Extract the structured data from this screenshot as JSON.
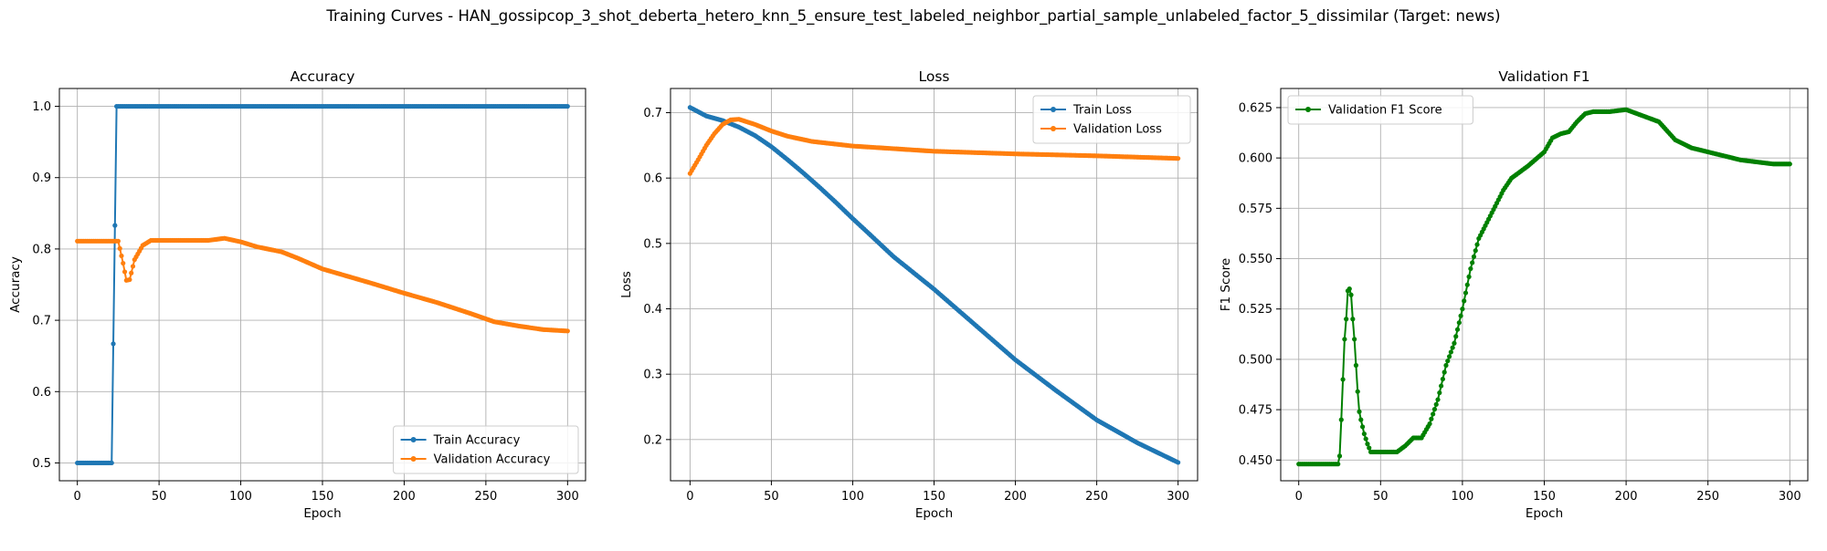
{
  "figure": {
    "title": "Training Curves - HAN_gossipcop_3_shot_deberta_hetero_knn_5_ensure_test_labeled_neighbor_partial_sample_unlabeled_factor_5_dissimilar (Target: news)"
  },
  "colors": {
    "blue": "#1f77b4",
    "orange": "#ff7f0e",
    "green": "#008000",
    "grid": "#b0b0b0"
  },
  "chart_data": [
    {
      "type": "line",
      "title": "Accuracy",
      "xlabel": "Epoch",
      "ylabel": "Accuracy",
      "xlim": [
        -11,
        311
      ],
      "ylim": [
        0.475,
        1.025
      ],
      "xticks": [
        0,
        50,
        100,
        150,
        200,
        250,
        300
      ],
      "yticks": [
        0.5,
        0.6,
        0.7,
        0.8,
        0.9,
        1.0
      ],
      "ytick_labels": [
        "0.5",
        "0.6",
        "0.7",
        "0.8",
        "0.9",
        "1.0"
      ],
      "grid": true,
      "legend_position": "lower-right",
      "series": [
        {
          "name": "Train Accuracy",
          "color": "#1f77b4",
          "keypoints": [
            [
              0,
              0.5
            ],
            [
              21,
              0.5
            ],
            [
              22,
              0.667
            ],
            [
              23,
              0.833
            ],
            [
              24,
              1.0
            ],
            [
              300,
              1.0
            ]
          ]
        },
        {
          "name": "Validation Accuracy",
          "color": "#ff7f0e",
          "keypoints": [
            [
              0,
              0.811
            ],
            [
              25,
              0.811
            ],
            [
              28,
              0.78
            ],
            [
              30,
              0.756
            ],
            [
              32,
              0.757
            ],
            [
              35,
              0.785
            ],
            [
              40,
              0.805
            ],
            [
              45,
              0.812
            ],
            [
              60,
              0.812
            ],
            [
              80,
              0.812
            ],
            [
              90,
              0.815
            ],
            [
              100,
              0.81
            ],
            [
              110,
              0.803
            ],
            [
              125,
              0.796
            ],
            [
              135,
              0.787
            ],
            [
              150,
              0.772
            ],
            [
              165,
              0.762
            ],
            [
              180,
              0.752
            ],
            [
              200,
              0.738
            ],
            [
              220,
              0.725
            ],
            [
              240,
              0.71
            ],
            [
              255,
              0.698
            ],
            [
              270,
              0.692
            ],
            [
              285,
              0.687
            ],
            [
              300,
              0.685
            ]
          ]
        }
      ]
    },
    {
      "type": "line",
      "title": "Loss",
      "xlabel": "Epoch",
      "ylabel": "Loss",
      "xlim": [
        -12,
        312
      ],
      "ylim": [
        0.137,
        0.737
      ],
      "xticks": [
        0,
        50,
        100,
        150,
        200,
        250,
        300
      ],
      "yticks": [
        0.2,
        0.3,
        0.4,
        0.5,
        0.6,
        0.7
      ],
      "ytick_labels": [
        "0.2",
        "0.3",
        "0.4",
        "0.5",
        "0.6",
        "0.7"
      ],
      "grid": true,
      "legend_position": "upper-right",
      "series": [
        {
          "name": "Train Loss",
          "color": "#1f77b4",
          "keypoints": [
            [
              0,
              0.708
            ],
            [
              10,
              0.695
            ],
            [
              20,
              0.688
            ],
            [
              30,
              0.678
            ],
            [
              40,
              0.665
            ],
            [
              50,
              0.648
            ],
            [
              60,
              0.628
            ],
            [
              70,
              0.607
            ],
            [
              80,
              0.585
            ],
            [
              90,
              0.562
            ],
            [
              100,
              0.538
            ],
            [
              110,
              0.515
            ],
            [
              125,
              0.48
            ],
            [
              150,
              0.43
            ],
            [
              175,
              0.376
            ],
            [
              200,
              0.322
            ],
            [
              225,
              0.275
            ],
            [
              250,
              0.23
            ],
            [
              275,
              0.195
            ],
            [
              300,
              0.165
            ]
          ]
        },
        {
          "name": "Validation Loss",
          "color": "#ff7f0e",
          "keypoints": [
            [
              0,
              0.607
            ],
            [
              5,
              0.628
            ],
            [
              10,
              0.65
            ],
            [
              15,
              0.668
            ],
            [
              20,
              0.682
            ],
            [
              25,
              0.689
            ],
            [
              30,
              0.69
            ],
            [
              40,
              0.682
            ],
            [
              50,
              0.672
            ],
            [
              60,
              0.664
            ],
            [
              75,
              0.656
            ],
            [
              100,
              0.649
            ],
            [
              125,
              0.645
            ],
            [
              150,
              0.641
            ],
            [
              200,
              0.637
            ],
            [
              250,
              0.634
            ],
            [
              300,
              0.63
            ]
          ]
        }
      ]
    },
    {
      "type": "line",
      "title": "Validation F1",
      "xlabel": "Epoch",
      "ylabel": "F1 Score",
      "xlim": [
        -11,
        311
      ],
      "ylim": [
        0.4397,
        0.6345
      ],
      "xticks": [
        0,
        50,
        100,
        150,
        200,
        250,
        300
      ],
      "yticks": [
        0.45,
        0.475,
        0.5,
        0.525,
        0.55,
        0.575,
        0.6,
        0.625
      ],
      "ytick_labels": [
        "0.450",
        "0.475",
        "0.500",
        "0.525",
        "0.550",
        "0.575",
        "0.600",
        "0.625"
      ],
      "grid": true,
      "legend_position": "upper-left",
      "series": [
        {
          "name": "Validation F1 Score",
          "color": "#008000",
          "keypoints": [
            [
              0,
              0.448
            ],
            [
              24,
              0.448
            ],
            [
              25,
              0.452
            ],
            [
              26,
              0.47
            ],
            [
              27,
              0.49
            ],
            [
              28,
              0.51
            ],
            [
              29,
              0.52
            ],
            [
              30,
              0.534
            ],
            [
              31,
              0.535
            ],
            [
              32,
              0.532
            ],
            [
              33,
              0.52
            ],
            [
              34,
              0.51
            ],
            [
              35,
              0.497
            ],
            [
              36,
              0.484
            ],
            [
              37,
              0.474
            ],
            [
              38,
              0.47
            ],
            [
              40,
              0.463
            ],
            [
              42,
              0.458
            ],
            [
              44,
              0.454
            ],
            [
              60,
              0.454
            ],
            [
              65,
              0.457
            ],
            [
              70,
              0.461
            ],
            [
              75,
              0.461
            ],
            [
              80,
              0.468
            ],
            [
              85,
              0.48
            ],
            [
              90,
              0.497
            ],
            [
              95,
              0.508
            ],
            [
              100,
              0.525
            ],
            [
              105,
              0.545
            ],
            [
              110,
              0.56
            ],
            [
              115,
              0.568
            ],
            [
              120,
              0.576
            ],
            [
              125,
              0.584
            ],
            [
              130,
              0.59
            ],
            [
              140,
              0.596
            ],
            [
              150,
              0.603
            ],
            [
              155,
              0.61
            ],
            [
              160,
              0.612
            ],
            [
              165,
              0.613
            ],
            [
              170,
              0.618
            ],
            [
              175,
              0.622
            ],
            [
              180,
              0.623
            ],
            [
              190,
              0.623
            ],
            [
              200,
              0.624
            ],
            [
              210,
              0.621
            ],
            [
              220,
              0.618
            ],
            [
              230,
              0.609
            ],
            [
              240,
              0.605
            ],
            [
              250,
              0.603
            ],
            [
              260,
              0.601
            ],
            [
              270,
              0.599
            ],
            [
              280,
              0.598
            ],
            [
              290,
              0.597
            ],
            [
              300,
              0.597
            ]
          ]
        }
      ]
    }
  ]
}
